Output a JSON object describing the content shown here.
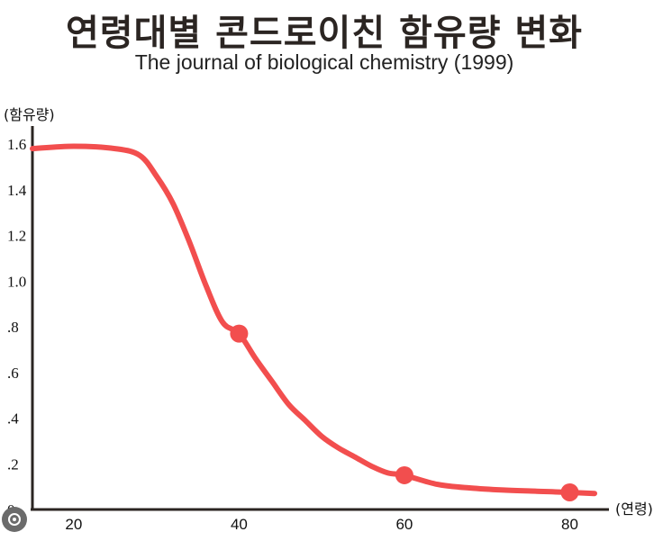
{
  "chart_data": {
    "type": "line",
    "title": "연령대별 콘드로이친 함유량 변화",
    "subtitle": "The journal of biological chemistry (1999)",
    "xlabel": "(연령)",
    "ylabel": "(함유량)",
    "xticks": [
      "20",
      "40",
      "60",
      "80"
    ],
    "yticks": [
      "0",
      ".2",
      ".4",
      ".6",
      ".8",
      "1.0",
      "1.2",
      "1.4",
      "1.6"
    ],
    "xlim": [
      15,
      83
    ],
    "ylim": [
      0,
      1.6
    ],
    "grid": false,
    "series": [
      {
        "color": "#f24e4e",
        "curve": [
          [
            15,
            1.58
          ],
          [
            20,
            1.59
          ],
          [
            25,
            1.58
          ],
          [
            28,
            1.55
          ],
          [
            30,
            1.46
          ],
          [
            32,
            1.34
          ],
          [
            34,
            1.17
          ],
          [
            36,
            0.98
          ],
          [
            38,
            0.82
          ],
          [
            40,
            0.77
          ],
          [
            42,
            0.66
          ],
          [
            44,
            0.56
          ],
          [
            46,
            0.46
          ],
          [
            48,
            0.39
          ],
          [
            50,
            0.32
          ],
          [
            52,
            0.27
          ],
          [
            54,
            0.23
          ],
          [
            56,
            0.19
          ],
          [
            58,
            0.16
          ],
          [
            60,
            0.15
          ],
          [
            64,
            0.11
          ],
          [
            68,
            0.094
          ],
          [
            72,
            0.085
          ],
          [
            76,
            0.08
          ],
          [
            80,
            0.075
          ],
          [
            83,
            0.07
          ]
        ],
        "markers": [
          [
            40,
            0.77
          ],
          [
            60,
            0.15
          ],
          [
            80,
            0.075
          ]
        ]
      }
    ]
  }
}
